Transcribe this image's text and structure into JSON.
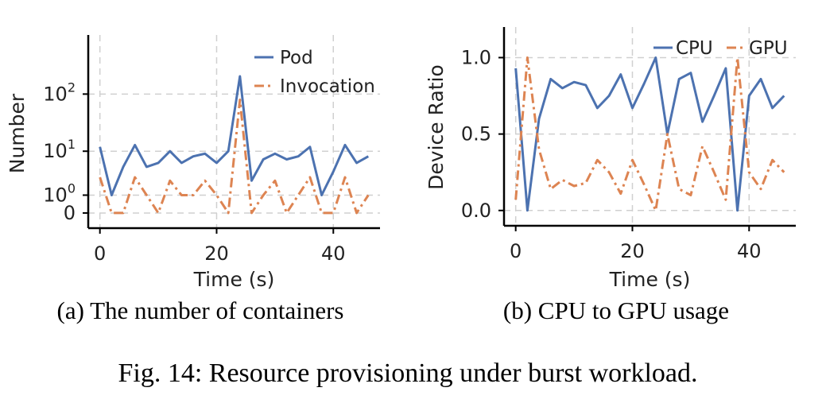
{
  "colors": {
    "blue": "#4c72b0",
    "orange": "#dd8452"
  },
  "figure_caption": "Fig. 14: Resource provisioning under burst workload.",
  "chart_data": [
    {
      "type": "line",
      "caption": "(a) The number of containers",
      "xlabel": "Time (s)",
      "ylabel": "Number",
      "y_scale": "symlog",
      "xlim": [
        -2,
        48
      ],
      "ylim": [
        -0.8,
        1000
      ],
      "xticks": [
        0,
        20,
        40
      ],
      "xtick_labels": [
        "0",
        "20",
        "40"
      ],
      "yticks": [
        0,
        1,
        10,
        100
      ],
      "ytick_labels": [
        {
          "base": "0",
          "exp": ""
        },
        {
          "base": "10",
          "exp": "0"
        },
        {
          "base": "10",
          "exp": "1"
        },
        {
          "base": "10",
          "exp": "2"
        }
      ],
      "legend_position": "top-right",
      "x": [
        0,
        2,
        4,
        6,
        8,
        10,
        12,
        14,
        16,
        18,
        20,
        22,
        24,
        26,
        28,
        30,
        32,
        34,
        36,
        38,
        40,
        42,
        44,
        46
      ],
      "series": [
        {
          "name": "Pod",
          "style": "solid",
          "color_key": "blue",
          "values": [
            12,
            1,
            5,
            13,
            5,
            6,
            10,
            6,
            8,
            9,
            6,
            10,
            200,
            2.5,
            7,
            9,
            7,
            8,
            12,
            1,
            4,
            13,
            6,
            8
          ]
        },
        {
          "name": "Invocation",
          "style": "dashdot",
          "color_key": "orange",
          "values": [
            3,
            0,
            0,
            3,
            1,
            0,
            2.5,
            1,
            1,
            2.5,
            1,
            0,
            80,
            0,
            1,
            2.5,
            0,
            1,
            3,
            0,
            0,
            3,
            0,
            1
          ]
        }
      ]
    },
    {
      "type": "line",
      "caption": "(b) CPU to GPU usage",
      "xlabel": "Time (s)",
      "ylabel": "Device Ratio",
      "y_scale": "linear",
      "xlim": [
        -2,
        48
      ],
      "ylim": [
        -0.1,
        1.2
      ],
      "xticks": [
        0,
        20,
        40
      ],
      "xtick_labels": [
        "0",
        "20",
        "40"
      ],
      "yticks": [
        0,
        0.5,
        1
      ],
      "ytick_labels": [
        "0.0",
        "0.5",
        "1.0"
      ],
      "legend_position": "top-right",
      "x": [
        0,
        2,
        4,
        6,
        8,
        10,
        12,
        14,
        16,
        18,
        20,
        22,
        24,
        26,
        28,
        30,
        32,
        34,
        36,
        38,
        40,
        42,
        44,
        46
      ],
      "series": [
        {
          "name": "CPU",
          "style": "solid",
          "color_key": "blue",
          "values": [
            0.93,
            0.0,
            0.6,
            0.86,
            0.8,
            0.84,
            0.82,
            0.67,
            0.75,
            0.89,
            0.67,
            0.83,
            1.0,
            0.5,
            0.86,
            0.9,
            0.58,
            0.75,
            0.93,
            0.0,
            0.75,
            0.86,
            0.67,
            0.75
          ]
        },
        {
          "name": "GPU",
          "style": "dashdot",
          "color_key": "orange",
          "values": [
            0.07,
            1.0,
            0.4,
            0.14,
            0.2,
            0.16,
            0.18,
            0.33,
            0.25,
            0.11,
            0.33,
            0.17,
            0.0,
            0.5,
            0.14,
            0.1,
            0.42,
            0.25,
            0.07,
            1.0,
            0.25,
            0.14,
            0.33,
            0.25
          ]
        }
      ]
    }
  ]
}
